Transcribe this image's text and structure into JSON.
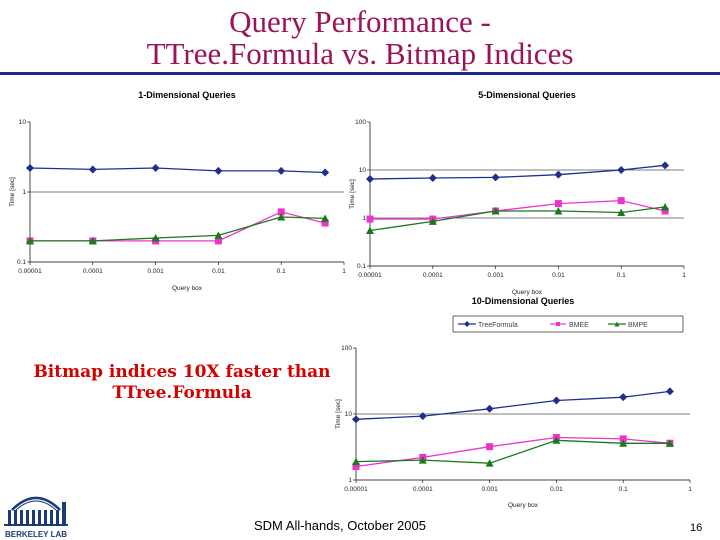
{
  "slide": {
    "title_line1": "Query Performance -",
    "title_line2": "TTree.Formula vs. Bitmap Indices",
    "callout_line1": "Bitmap indices 10X faster than",
    "callout_line2": "TTree.Formula",
    "footer": "SDM All-hands, October 2005",
    "page_number": "16",
    "logo_text": "BERKELEY LAB",
    "accent_color": "#9b1458",
    "rule_color": "#1b2a8c"
  },
  "legend": {
    "entries": [
      "TreeFormula",
      "BMEE",
      "BMPE"
    ]
  },
  "chart_data": [
    {
      "type": "line",
      "title": "1-Dimensional Queries",
      "xlabel": "Query box",
      "ylabel": "Time [sec]",
      "x_scale": "log",
      "y_scale": "log",
      "xlim": [
        1e-05,
        1
      ],
      "ylim": [
        0.1,
        10
      ],
      "x_ticks": [
        "0.00001",
        "0.0001",
        "0.001",
        "0.01",
        "0.1",
        "1"
      ],
      "y_ticks": [
        "0.1",
        "1",
        "10"
      ],
      "x": [
        1e-05,
        0.0001,
        0.001,
        0.01,
        0.1,
        0.5
      ],
      "series": [
        {
          "name": "TreeFormula",
          "color": "#1f2f8c",
          "marker": "diamond",
          "values": [
            2.2,
            2.1,
            2.2,
            2.0,
            2.0,
            1.9
          ]
        },
        {
          "name": "BMEE",
          "color": "#ee33cc",
          "marker": "square",
          "values": [
            0.2,
            0.2,
            0.2,
            0.2,
            0.52,
            0.36
          ]
        },
        {
          "name": "BMPE",
          "color": "#1a7a1a",
          "marker": "triangle",
          "values": [
            0.2,
            0.2,
            0.22,
            0.24,
            0.44,
            0.42
          ]
        }
      ]
    },
    {
      "type": "line",
      "title": "5-Dimensional Queries",
      "xlabel": "Query box",
      "ylabel": "Time [sec]",
      "x_scale": "log",
      "y_scale": "log",
      "xlim": [
        1e-05,
        1
      ],
      "ylim": [
        0.1,
        100
      ],
      "x_ticks": [
        "0.00001",
        "0.0001",
        "0.001",
        "0.01",
        "0.1",
        "1"
      ],
      "y_ticks": [
        "0.1",
        "1",
        "10",
        "100"
      ],
      "x": [
        1e-05,
        0.0001,
        0.001,
        0.01,
        0.1,
        0.5
      ],
      "series": [
        {
          "name": "TreeFormula",
          "color": "#1f2f8c",
          "marker": "diamond",
          "values": [
            6.5,
            6.8,
            7.0,
            8.0,
            10,
            12.5
          ]
        },
        {
          "name": "BMEE",
          "color": "#ee33cc",
          "marker": "square",
          "values": [
            0.95,
            0.95,
            1.4,
            2.0,
            2.3,
            1.4
          ]
        },
        {
          "name": "BMPE",
          "color": "#1a7a1a",
          "marker": "triangle",
          "values": [
            0.55,
            0.85,
            1.4,
            1.4,
            1.3,
            1.7
          ]
        }
      ]
    },
    {
      "type": "line",
      "title": "10-Dimensional Queries",
      "xlabel": "Query box",
      "ylabel": "Time [sec]",
      "x_scale": "log",
      "y_scale": "log",
      "xlim": [
        1e-05,
        1
      ],
      "ylim": [
        1,
        100
      ],
      "x_ticks": [
        "0.00001",
        "0.0001",
        "0.001",
        "0.01",
        "0.1",
        "1"
      ],
      "y_ticks": [
        "1",
        "10",
        "100"
      ],
      "x": [
        1e-05,
        0.0001,
        0.001,
        0.01,
        0.1,
        0.5
      ],
      "series": [
        {
          "name": "TreeFormula",
          "color": "#1f2f8c",
          "marker": "diamond",
          "values": [
            8.3,
            9.3,
            12,
            16,
            18,
            22
          ]
        },
        {
          "name": "BMEE",
          "color": "#ee33cc",
          "marker": "square",
          "values": [
            1.6,
            2.2,
            3.2,
            4.4,
            4.2,
            3.6
          ]
        },
        {
          "name": "BMPE",
          "color": "#1a7a1a",
          "marker": "triangle",
          "values": [
            1.9,
            2.0,
            1.8,
            4.0,
            3.6,
            3.6
          ]
        }
      ]
    }
  ]
}
